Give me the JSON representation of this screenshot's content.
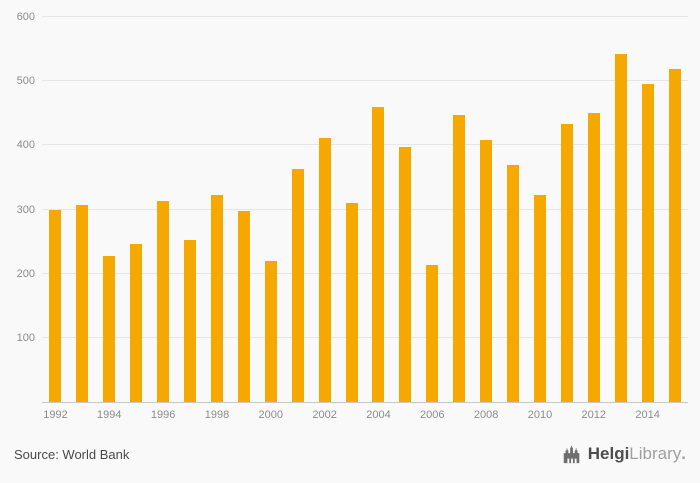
{
  "chart_data": {
    "type": "bar",
    "title": "",
    "xlabel": "",
    "ylabel": "",
    "categories": [
      1992,
      1993,
      1994,
      1995,
      1996,
      1997,
      1998,
      1999,
      2000,
      2001,
      2002,
      2003,
      2004,
      2005,
      2006,
      2007,
      2008,
      2009,
      2010,
      2011,
      2012,
      2013,
      2014,
      2015
    ],
    "values": [
      300,
      307,
      227,
      247,
      313,
      253,
      322,
      297,
      220,
      363,
      412,
      310,
      460,
      398,
      214,
      447,
      409,
      370,
      322,
      434,
      450,
      543,
      496,
      519
    ],
    "ylim": [
      0,
      600
    ],
    "yticks": [
      100,
      200,
      300,
      400,
      500,
      600
    ],
    "x_tick_labels": [
      1992,
      1994,
      1996,
      1998,
      2000,
      2002,
      2004,
      2006,
      2008,
      2010,
      2012,
      2014
    ],
    "grid": true,
    "legend": false,
    "bar_color": "#F5A800"
  },
  "colors": {
    "background": "#f9f9f9",
    "gridline": "#e6e6e6",
    "axis_line": "#c8c8c8",
    "tick_text": "#8c8c8c",
    "bar": "#F5A800"
  },
  "footer": {
    "source": "Source: World Bank",
    "logo": {
      "icon": "building-icon",
      "name_bold": "Helgi",
      "name_light": "Library",
      "suffix": "."
    }
  }
}
